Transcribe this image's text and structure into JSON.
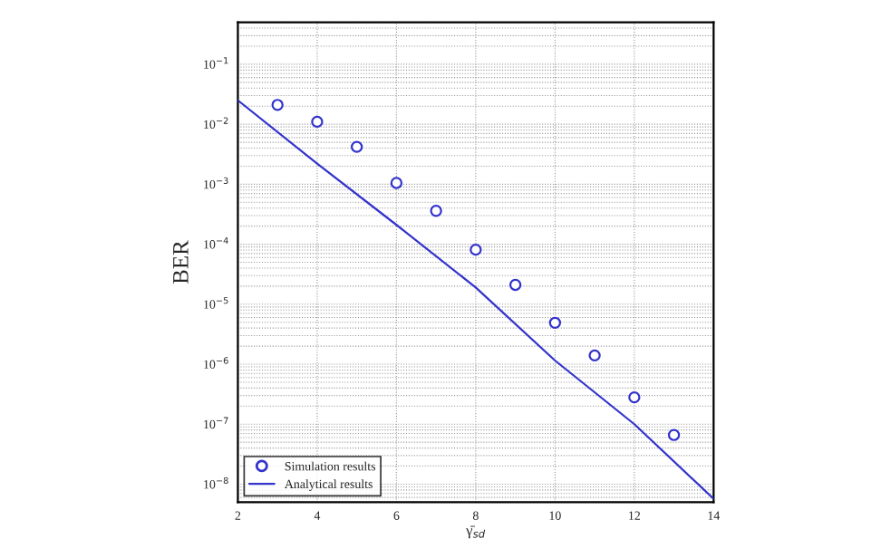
{
  "chart_data": {
    "type": "line",
    "xlabel": "γ̄$_{sd}$",
    "ylabel": "BER",
    "log": "y",
    "grid": true,
    "legend": "bottom left",
    "xlim": [
      2,
      14
    ],
    "xticks": [
      2,
      4,
      6,
      8,
      10,
      12,
      14
    ],
    "ylim": [
      5e-09,
      0.5
    ],
    "yticks": [
      {
        "value": 1e-08,
        "label": "10$^{−8}$"
      },
      {
        "value": 1e-07,
        "label": "10$^{−7}$"
      },
      {
        "value": 1e-06,
        "label": "10$^{−6}$"
      },
      {
        "value": 1e-05,
        "label": "10$^{−5}$"
      },
      {
        "value": 0.0001,
        "label": "10$^{−4}$"
      },
      {
        "value": 0.001,
        "label": "10$^{−3}$"
      },
      {
        "value": 0.01,
        "label": "10$^{−2}$"
      },
      {
        "value": 0.1,
        "label": "10$^{−1}$"
      }
    ],
    "series": [
      {
        "name": "Simulation results",
        "type": "scatter",
        "marker": "circle",
        "color": "#3333cc",
        "x": [
          3,
          4,
          5,
          6,
          7,
          8,
          9,
          10,
          11,
          12,
          13
        ],
        "values": [
          0.021,
          0.011,
          0.0042,
          0.00105,
          0.00036,
          8.1e-05,
          2.1e-05,
          4.9e-06,
          1.4e-06,
          2.8e-07,
          6.6e-08
        ]
      },
      {
        "name": "Analytical results",
        "marker": "none",
        "line_style": "solid",
        "color": "#3333cc",
        "x": [
          2,
          4,
          6,
          8,
          10,
          12,
          14
        ],
        "values": [
          0.025,
          0.0022,
          0.00021,
          1.9e-05,
          1.15e-06,
          1e-07,
          5.7e-09
        ]
      }
    ]
  }
}
